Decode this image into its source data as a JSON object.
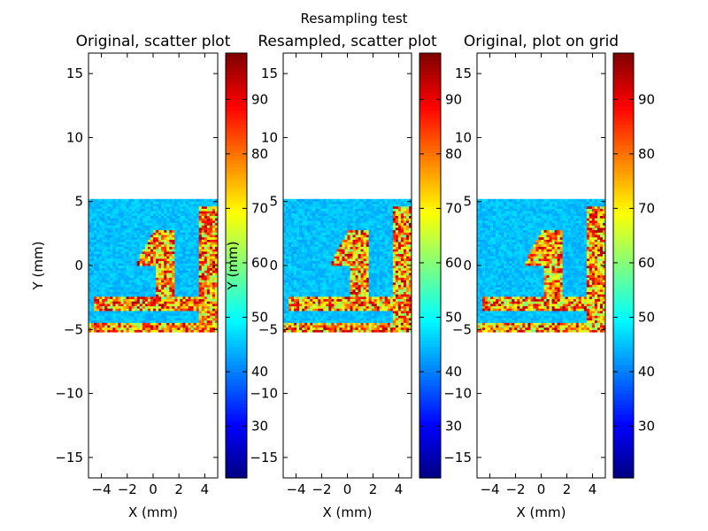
{
  "figure": {
    "suptitle": "Resampling test"
  },
  "chart_data": [
    {
      "type": "scatter",
      "title": "Original, scatter plot",
      "xlabel": "X (mm)",
      "ylabel": "Y (mm)",
      "xlim": [
        -5,
        5
      ],
      "ylim": [
        -16.6,
        16.6
      ],
      "xticks": [
        -4,
        -2,
        0,
        2,
        4
      ],
      "yticks": [
        -15,
        -10,
        -5,
        0,
        5,
        10,
        15
      ],
      "data_extent": {
        "x": [
          -5,
          5
        ],
        "y": [
          -5.2,
          5.2
        ]
      },
      "colormap": "jet",
      "colorbar": {
        "range": [
          20.5,
          98.5
        ],
        "ticks": [
          30,
          40,
          50,
          60,
          70,
          80,
          90
        ]
      },
      "background_value": 45,
      "pattern": "digit '1' plus an L-shaped bar at the bottom and a vertical bar at the right edge, values ~60–95"
    },
    {
      "type": "scatter",
      "title": "Resampled, scatter plot",
      "xlabel": "X (mm)",
      "ylabel": "Y (mm)",
      "xlim": [
        -5,
        5
      ],
      "ylim": [
        -16.6,
        16.6
      ],
      "xticks": [
        -4,
        -2,
        0,
        2,
        4
      ],
      "yticks": [
        -15,
        -10,
        -5,
        0,
        5,
        10,
        15
      ],
      "data_extent": {
        "x": [
          -5,
          5
        ],
        "y": [
          -5.2,
          5.2
        ]
      },
      "colormap": "jet",
      "colorbar": {
        "range": [
          20.5,
          98.5
        ],
        "ticks": [
          30,
          40,
          50,
          60,
          70,
          80,
          90
        ]
      },
      "background_value": 45,
      "pattern": "digit '1' plus an L-shaped bar at the bottom and a vertical bar at the right edge, values ~60–95"
    },
    {
      "type": "heatmap",
      "title": "Original, plot on grid",
      "xlabel": "X (mm)",
      "ylabel": "",
      "xlim": [
        -5,
        5
      ],
      "ylim": [
        -16.6,
        16.6
      ],
      "xticks": [
        -4,
        -2,
        0,
        2,
        4
      ],
      "yticks": [
        -15,
        -10,
        -5,
        0,
        5,
        10,
        15
      ],
      "data_extent": {
        "x": [
          -5,
          5
        ],
        "y": [
          -5.2,
          5.2
        ]
      },
      "colormap": "jet",
      "colorbar": {
        "range": [
          20.5,
          98.5
        ],
        "ticks": [
          30,
          40,
          50,
          60,
          70,
          80,
          90
        ]
      },
      "background_value": 45,
      "pattern": "digit '1' plus an L-shaped bar at the bottom and a vertical bar at the right edge, values ~60–95"
    }
  ]
}
